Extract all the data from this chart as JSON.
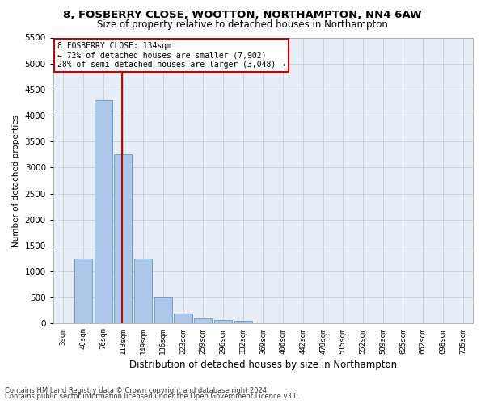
{
  "title_line1": "8, FOSBERRY CLOSE, WOOTTON, NORTHAMPTON, NN4 6AW",
  "title_line2": "Size of property relative to detached houses in Northampton",
  "xlabel": "Distribution of detached houses by size in Northampton",
  "ylabel": "Number of detached properties",
  "footnote_line1": "Contains HM Land Registry data © Crown copyright and database right 2024.",
  "footnote_line2": "Contains public sector information licensed under the Open Government Licence v3.0.",
  "bar_labels": [
    "3sqm",
    "40sqm",
    "76sqm",
    "113sqm",
    "149sqm",
    "186sqm",
    "223sqm",
    "259sqm",
    "296sqm",
    "332sqm",
    "369sqm",
    "406sqm",
    "442sqm",
    "479sqm",
    "515sqm",
    "552sqm",
    "589sqm",
    "625sqm",
    "662sqm",
    "698sqm",
    "735sqm"
  ],
  "bar_values": [
    0,
    1250,
    4300,
    3250,
    1250,
    500,
    200,
    100,
    75,
    50,
    0,
    0,
    0,
    0,
    0,
    0,
    0,
    0,
    0,
    0,
    0
  ],
  "bar_color": "#aec6e8",
  "bar_edgecolor": "#5b9bd5",
  "vline_color": "#cc0000",
  "vline_x": 2.925,
  "ylim": [
    0,
    5500
  ],
  "yticks": [
    0,
    500,
    1000,
    1500,
    2000,
    2500,
    3000,
    3500,
    4000,
    4500,
    5000,
    5500
  ],
  "annotation_text_line1": "8 FOSBERRY CLOSE: 134sqm",
  "annotation_text_line2": "← 72% of detached houses are smaller (7,902)",
  "annotation_text_line3": "28% of semi-detached houses are larger (3,048) →",
  "grid_color": "#cccccc",
  "background_color": "#e8eef7",
  "fig_bg_color": "#ffffff"
}
